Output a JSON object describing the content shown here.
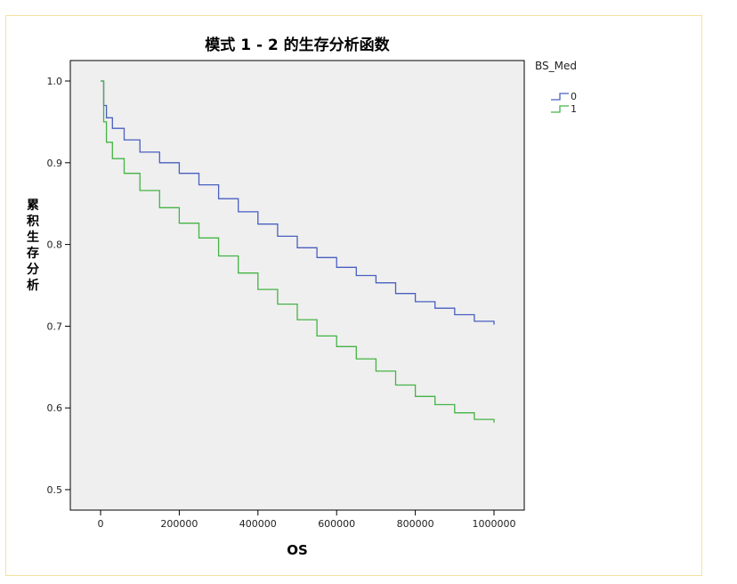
{
  "chart_data": {
    "type": "line",
    "title": "模式 1 - 2 的生存分析函数",
    "xlabel": "OS",
    "ylabel": "累积生存分析",
    "xlim": [
      0,
      1000000
    ],
    "ylim": [
      0.5,
      1.0
    ],
    "x_ticks": [
      "0",
      "200000",
      "400000",
      "600000",
      "800000",
      "1000000"
    ],
    "y_ticks": [
      "0.5",
      "0.6",
      "0.7",
      "0.8",
      "0.9",
      "1.0"
    ],
    "grid": false,
    "legend": {
      "title": "BS_Med",
      "placement": "right"
    },
    "series": [
      {
        "name": "0",
        "color": "#4a5fc1",
        "x": [
          0,
          5000,
          8000,
          15000,
          30000,
          60000,
          100000,
          150000,
          200000,
          250000,
          300000,
          350000,
          400000,
          450000,
          500000,
          550000,
          600000,
          650000,
          700000,
          750000,
          800000,
          850000,
          900000,
          950000,
          1000000
        ],
        "values": [
          1.0,
          1.0,
          0.97,
          0.955,
          0.942,
          0.928,
          0.913,
          0.9,
          0.887,
          0.873,
          0.856,
          0.84,
          0.825,
          0.81,
          0.796,
          0.784,
          0.772,
          0.762,
          0.753,
          0.74,
          0.73,
          0.722,
          0.714,
          0.706,
          0.702
        ]
      },
      {
        "name": "1",
        "color": "#44b344",
        "x": [
          0,
          5000,
          8000,
          15000,
          30000,
          60000,
          100000,
          150000,
          200000,
          250000,
          300000,
          350000,
          400000,
          450000,
          500000,
          550000,
          600000,
          650000,
          700000,
          750000,
          800000,
          850000,
          900000,
          950000,
          1000000
        ],
        "values": [
          1.0,
          1.0,
          0.95,
          0.925,
          0.905,
          0.887,
          0.866,
          0.845,
          0.826,
          0.808,
          0.786,
          0.765,
          0.745,
          0.727,
          0.708,
          0.688,
          0.675,
          0.66,
          0.645,
          0.628,
          0.614,
          0.604,
          0.594,
          0.586,
          0.582
        ]
      }
    ]
  }
}
